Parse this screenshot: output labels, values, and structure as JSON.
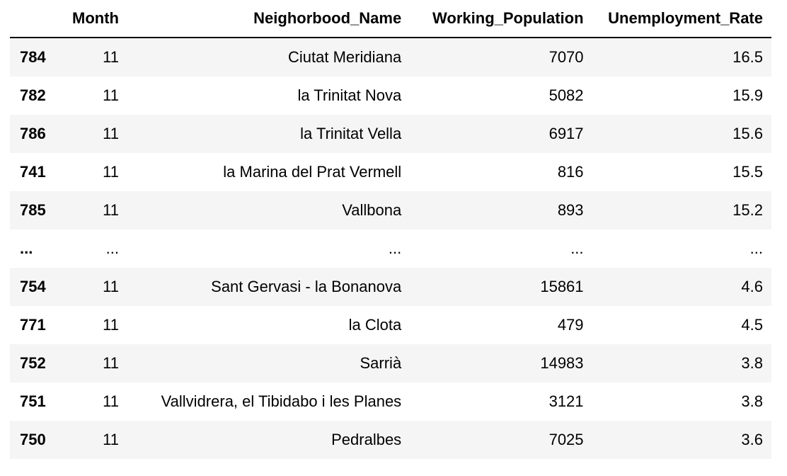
{
  "table": {
    "headers": {
      "index": "",
      "month": "Month",
      "name": "Neighorbood_Name",
      "population": "Working_Population",
      "rate": "Unemployment_Rate"
    },
    "rows": [
      {
        "index": "784",
        "month": "11",
        "name": "Ciutat Meridiana",
        "population": "7070",
        "rate": "16.5"
      },
      {
        "index": "782",
        "month": "11",
        "name": "la Trinitat Nova",
        "population": "5082",
        "rate": "15.9"
      },
      {
        "index": "786",
        "month": "11",
        "name": "la Trinitat Vella",
        "population": "6917",
        "rate": "15.6"
      },
      {
        "index": "741",
        "month": "11",
        "name": "la Marina del Prat Vermell",
        "population": "816",
        "rate": "15.5"
      },
      {
        "index": "785",
        "month": "11",
        "name": "Vallbona",
        "population": "893",
        "rate": "15.2"
      },
      {
        "index": "...",
        "month": "...",
        "name": "...",
        "population": "...",
        "rate": "..."
      },
      {
        "index": "754",
        "month": "11",
        "name": "Sant Gervasi - la Bonanova",
        "population": "15861",
        "rate": "4.6"
      },
      {
        "index": "771",
        "month": "11",
        "name": "la Clota",
        "population": "479",
        "rate": "4.5"
      },
      {
        "index": "752",
        "month": "11",
        "name": "Sarrià",
        "population": "14983",
        "rate": "3.8"
      },
      {
        "index": "751",
        "month": "11",
        "name": "Vallvidrera, el Tibidabo i les Planes",
        "population": "3121",
        "rate": "3.8"
      },
      {
        "index": "750",
        "month": "11",
        "name": "Pedralbes",
        "population": "7025",
        "rate": "3.6"
      }
    ]
  }
}
